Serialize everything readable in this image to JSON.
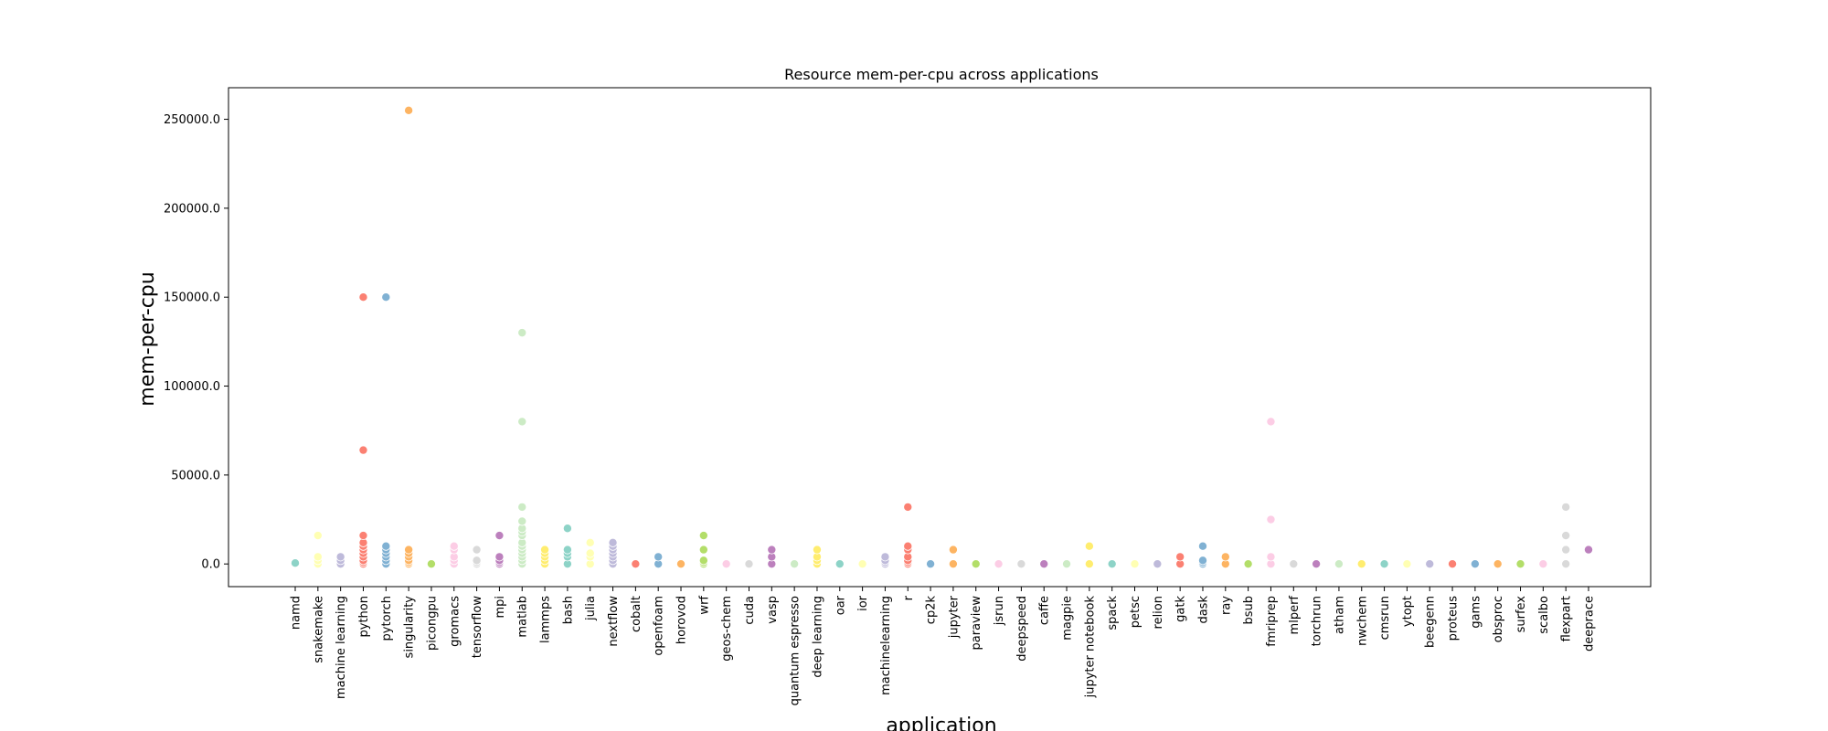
{
  "chart_data": {
    "type": "scatter",
    "title": "Resource mem-per-cpu across applications",
    "xlabel": "application",
    "ylabel": "mem-per-cpu",
    "ylim": [
      -12750,
      267750
    ],
    "yticks": [
      0,
      50000,
      100000,
      150000,
      200000,
      250000
    ],
    "ytick_labels": [
      "0.0",
      "50000.0",
      "100000.0",
      "150000.0",
      "200000.0",
      "250000.0"
    ],
    "grid": false,
    "legend": "none",
    "categories": [
      "namd",
      "snakemake",
      "machine learning",
      "python",
      "pytorch",
      "singularity",
      "picongpu",
      "gromacs",
      "tensorflow",
      "mpi",
      "matlab",
      "lammps",
      "bash",
      "julia",
      "nextflow",
      "cobalt",
      "openfoam",
      "horovod",
      "wrf",
      "geos-chem",
      "cuda",
      "vasp",
      "quantum espresso",
      "deep learning",
      "oar",
      "ior",
      "machinelearning",
      "r",
      "cp2k",
      "jupyter",
      "paraview",
      "jsrun",
      "deepspeed",
      "caffe",
      "magpie",
      "jupyter notebook",
      "spack",
      "petsc",
      "relion",
      "gatk",
      "dask",
      "ray",
      "bsub",
      "fmriprep",
      "mlperf",
      "torchrun",
      "atham",
      "nwchem",
      "cmsrun",
      "ytopt",
      "beegenn",
      "proteus",
      "gams",
      "obsproc",
      "surfex",
      "scalbo",
      "flexpart",
      "deeprace"
    ],
    "colors": [
      "#8dd3c7",
      "#ffffb3",
      "#bebada",
      "#fb8072",
      "#80b1d3",
      "#fdb462",
      "#b3de69",
      "#fccde5",
      "#d9d9d9",
      "#bc80bd",
      "#ccebc5",
      "#ffed6f"
    ],
    "series": [
      {
        "name": "namd",
        "values": [
          500
        ]
      },
      {
        "name": "snakemake",
        "values": [
          0,
          2000,
          4000,
          16000
        ]
      },
      {
        "name": "machine learning",
        "values": [
          0,
          2000,
          4000
        ]
      },
      {
        "name": "python",
        "values": [
          0,
          1000,
          2000,
          4000,
          6000,
          8000,
          10000,
          12000,
          16000,
          64000,
          150000
        ]
      },
      {
        "name": "pytorch",
        "values": [
          0,
          2000,
          4000,
          6000,
          8000,
          10000,
          150000
        ]
      },
      {
        "name": "singularity",
        "values": [
          0,
          1000,
          2000,
          4000,
          6000,
          8000,
          255000
        ]
      },
      {
        "name": "picongpu",
        "values": [
          0
        ]
      },
      {
        "name": "gromacs",
        "values": [
          0,
          2000,
          4000,
          8000,
          10000
        ]
      },
      {
        "name": "tensorflow",
        "values": [
          0,
          1000,
          2000,
          8000
        ]
      },
      {
        "name": "mpi",
        "values": [
          0,
          1000,
          2000,
          4000,
          16000
        ]
      },
      {
        "name": "matlab",
        "values": [
          0,
          2000,
          4000,
          6000,
          8000,
          10000,
          12000,
          16000,
          18000,
          20000,
          24000,
          32000,
          80000,
          130000
        ]
      },
      {
        "name": "lammps",
        "values": [
          0,
          2000,
          4000,
          6000,
          8000
        ]
      },
      {
        "name": "bash",
        "values": [
          0,
          4000,
          6000,
          8000,
          20000
        ]
      },
      {
        "name": "julia",
        "values": [
          0,
          4000,
          6000,
          12000
        ]
      },
      {
        "name": "nextflow",
        "values": [
          0,
          2000,
          4000,
          6000,
          8000,
          10000,
          12000
        ]
      },
      {
        "name": "cobalt",
        "values": [
          0
        ]
      },
      {
        "name": "openfoam",
        "values": [
          0,
          4000
        ]
      },
      {
        "name": "horovod",
        "values": [
          0
        ]
      },
      {
        "name": "wrf",
        "values": [
          0,
          1000,
          2000,
          8000,
          16000
        ]
      },
      {
        "name": "geos-chem",
        "values": [
          0
        ]
      },
      {
        "name": "cuda",
        "values": [
          0
        ]
      },
      {
        "name": "vasp",
        "values": [
          0,
          4000,
          8000
        ]
      },
      {
        "name": "quantum espresso",
        "values": [
          0
        ]
      },
      {
        "name": "deep learning",
        "values": [
          0,
          2000,
          4000,
          8000
        ]
      },
      {
        "name": "oar",
        "values": [
          0
        ]
      },
      {
        "name": "ior",
        "values": [
          0
        ]
      },
      {
        "name": "machinelearning",
        "values": [
          0,
          1000,
          2000,
          4000
        ]
      },
      {
        "name": "r",
        "values": [
          0,
          1000,
          2000,
          4000,
          8000,
          10000,
          32000
        ]
      },
      {
        "name": "cp2k",
        "values": [
          0
        ]
      },
      {
        "name": "jupyter",
        "values": [
          0,
          8000
        ]
      },
      {
        "name": "paraview",
        "values": [
          0
        ]
      },
      {
        "name": "jsrun",
        "values": [
          0
        ]
      },
      {
        "name": "deepspeed",
        "values": [
          0
        ]
      },
      {
        "name": "caffe",
        "values": [
          0
        ]
      },
      {
        "name": "magpie",
        "values": [
          0
        ]
      },
      {
        "name": "jupyter notebook",
        "values": [
          0,
          10000
        ]
      },
      {
        "name": "spack",
        "values": [
          0
        ]
      },
      {
        "name": "petsc",
        "values": [
          0
        ]
      },
      {
        "name": "relion",
        "values": [
          0
        ]
      },
      {
        "name": "gatk",
        "values": [
          0,
          4000
        ]
      },
      {
        "name": "dask",
        "values": [
          0,
          1000,
          2000,
          10000
        ]
      },
      {
        "name": "ray",
        "values": [
          0,
          4000
        ]
      },
      {
        "name": "bsub",
        "values": [
          0
        ]
      },
      {
        "name": "fmriprep",
        "values": [
          0,
          4000,
          25000,
          80000
        ]
      },
      {
        "name": "mlperf",
        "values": [
          0
        ]
      },
      {
        "name": "torchrun",
        "values": [
          0
        ]
      },
      {
        "name": "atham",
        "values": [
          0
        ]
      },
      {
        "name": "nwchem",
        "values": [
          0
        ]
      },
      {
        "name": "cmsrun",
        "values": [
          0
        ]
      },
      {
        "name": "ytopt",
        "values": [
          0
        ]
      },
      {
        "name": "beegenn",
        "values": [
          0
        ]
      },
      {
        "name": "proteus",
        "values": [
          0
        ]
      },
      {
        "name": "gams",
        "values": [
          0
        ]
      },
      {
        "name": "obsproc",
        "values": [
          0
        ]
      },
      {
        "name": "surfex",
        "values": [
          0
        ]
      },
      {
        "name": "scalbo",
        "values": [
          0
        ]
      },
      {
        "name": "flexpart",
        "values": [
          0,
          8000,
          16000,
          32000
        ]
      },
      {
        "name": "deeprace",
        "values": [
          8000
        ]
      }
    ]
  }
}
